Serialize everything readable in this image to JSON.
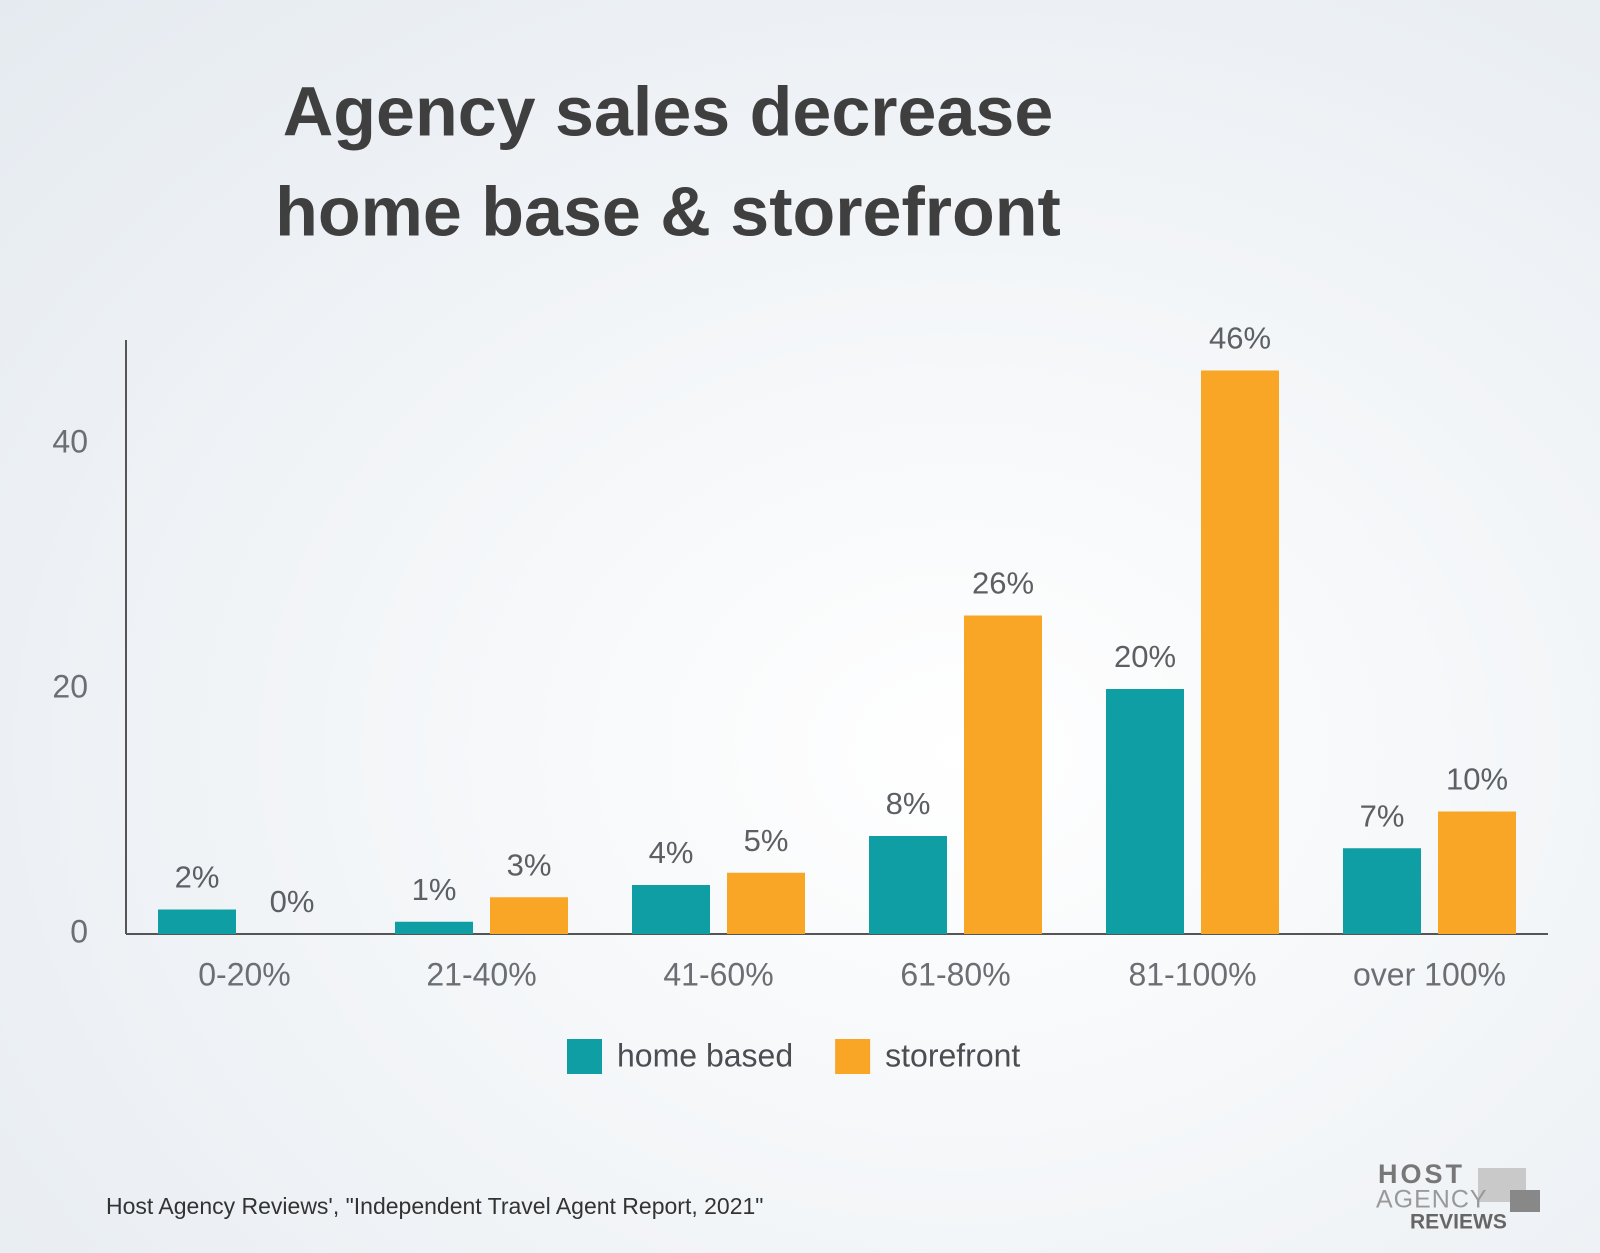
{
  "chart_data": {
    "type": "bar",
    "title": [
      "Agency sales decrease",
      "home base & storefront"
    ],
    "categories": [
      "0-20%",
      "21-40%",
      "41-60%",
      "61-80%",
      "81-100%",
      "over 100%"
    ],
    "series": [
      {
        "name": "home based",
        "color": "#0f9ea3",
        "values": [
          2,
          1,
          4,
          8,
          20,
          7
        ],
        "value_labels": [
          "2%",
          "1%",
          "4%",
          "8%",
          "20%",
          "7%"
        ]
      },
      {
        "name": "storefront",
        "color": "#f9a526",
        "values": [
          0,
          3,
          5,
          26,
          46,
          10
        ],
        "value_labels": [
          "0%",
          "3%",
          "5%",
          "26%",
          "46%",
          "10%"
        ]
      }
    ],
    "ylim": [
      0,
      48
    ],
    "yticks": [
      0,
      20,
      40
    ],
    "grid": false,
    "source": "Host Agency Reviews', \"Independent Travel Agent Report, 2021\""
  },
  "logo": [
    "HOST",
    "AGENCY",
    "REVIEWS"
  ]
}
